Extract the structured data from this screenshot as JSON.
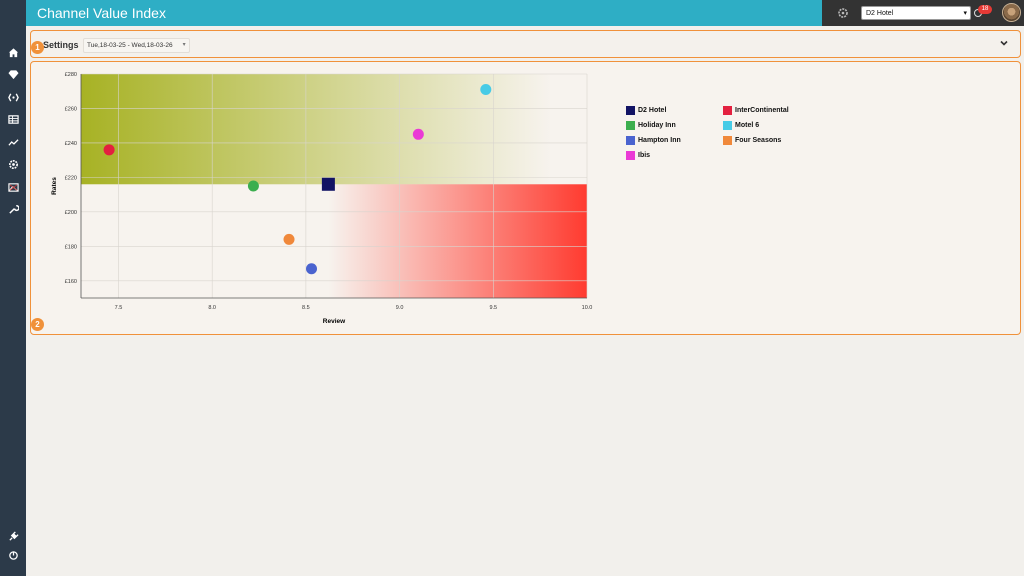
{
  "header": {
    "title": "Channel Value Index"
  },
  "topbar": {
    "hotel_selected": "D2 Hotel",
    "notification_count": "18"
  },
  "sidebar": {
    "icons": [
      "home-icon",
      "diamond-icon",
      "brackets-icon",
      "grid-icon",
      "trend-icon",
      "settings-icon",
      "image-icon",
      "wrench-icon",
      "plug-icon",
      "power-icon"
    ]
  },
  "settings": {
    "label": "Settings",
    "date_range": "Tue,18-03-25 - Wed,18-03-26"
  },
  "markers": {
    "one": "1",
    "two": "2"
  },
  "colors": {
    "accent": "#f0913a",
    "header": "#2eaec5",
    "sidebar": "#2c3a49"
  },
  "chart_data": {
    "type": "scatter",
    "xlabel": "Review",
    "ylabel": "Rates",
    "xlim": [
      7.3,
      10.0
    ],
    "ylim": [
      150,
      280
    ],
    "xticks": [
      7.5,
      8.0,
      8.5,
      9.0,
      9.5,
      10.0
    ],
    "xtick_labels": [
      "7.5",
      "8.0",
      "8.5",
      "9.0",
      "9.5",
      "10.0"
    ],
    "yticks": [
      160,
      180,
      200,
      220,
      240,
      260,
      280
    ],
    "ytick_labels": [
      "£160",
      "£180",
      "£200",
      "£220",
      "£240",
      "£260",
      "£280"
    ],
    "grid": true,
    "legend_position": "right",
    "series": [
      {
        "name": "D2 Hotel",
        "x": 8.62,
        "y": 216,
        "color": "#121364",
        "shape": "square"
      },
      {
        "name": "InterContinental",
        "x": 7.45,
        "y": 236,
        "color": "#e3203f",
        "shape": "circle"
      },
      {
        "name": "Holiday Inn",
        "x": 8.22,
        "y": 215,
        "color": "#3cae4e",
        "shape": "circle"
      },
      {
        "name": "Motel 6",
        "x": 9.46,
        "y": 271,
        "color": "#47cbe6",
        "shape": "circle"
      },
      {
        "name": "Hampton Inn",
        "x": 8.53,
        "y": 167,
        "color": "#4a63cf",
        "shape": "circle"
      },
      {
        "name": "Four Seasons",
        "x": 8.41,
        "y": 184,
        "color": "#f0883a",
        "shape": "circle"
      },
      {
        "name": "Ibis",
        "x": 9.1,
        "y": 245,
        "color": "#ea3ad5",
        "shape": "circle"
      }
    ],
    "regions": [
      {
        "x": [
          7.3,
          8.62
        ],
        "y": [
          216,
          280
        ],
        "color": "#a7b224"
      },
      {
        "x": [
          8.62,
          10.0
        ],
        "y": [
          150,
          216
        ],
        "color": "#ff3b30"
      }
    ]
  }
}
